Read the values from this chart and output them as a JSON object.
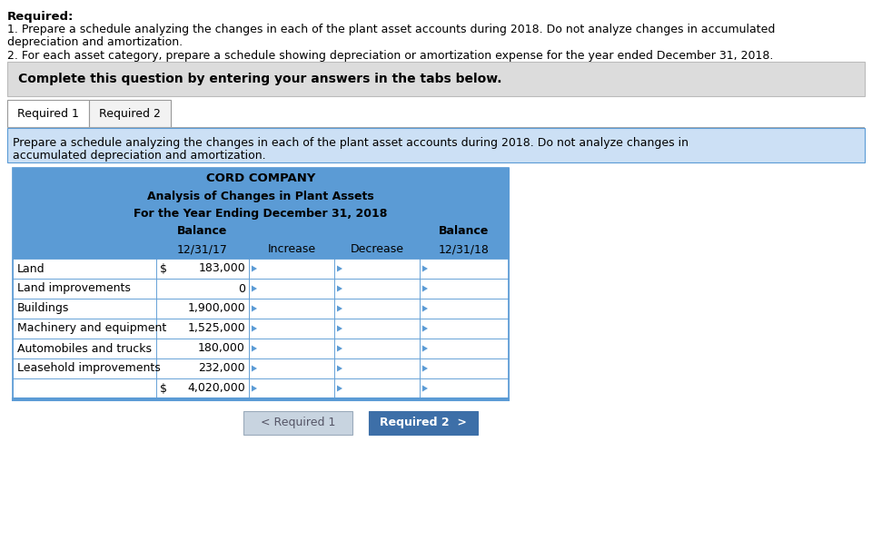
{
  "required_bold": "Required:",
  "req_line1": "1. Prepare a schedule analyzing the changes in each of the plant asset accounts during 2018. Do not analyze changes in accumulated",
  "req_line2": "depreciation and amortization.",
  "req_line3": "2. For each asset category, prepare a schedule showing depreciation or amortization expense for the year ended December 31, 2018.",
  "complete_text": "Complete this question by entering your answers in the tabs below.",
  "tab1": "Required 1",
  "tab2": "Required 2",
  "instr1": "Prepare a schedule analyzing the changes in each of the plant asset accounts during 2018. Do not analyze changes in",
  "instr2": "accumulated depreciation and amortization.",
  "title1": "CORD COMPANY",
  "title2": "Analysis of Changes in Plant Assets",
  "title3": "For the Year Ending December 31, 2018",
  "hdr_balance": "Balance",
  "hdr_1217": "12/31/17",
  "hdr_increase": "Increase",
  "hdr_decrease": "Decrease",
  "hdr_1218": "12/31/18",
  "rows": [
    {
      "label": "Land",
      "dollar": "$",
      "bal17": "183,000"
    },
    {
      "label": "Land improvements",
      "dollar": "",
      "bal17": "0"
    },
    {
      "label": "Buildings",
      "dollar": "",
      "bal17": "1,900,000"
    },
    {
      "label": "Machinery and equipment",
      "dollar": "",
      "bal17": "1,525,000"
    },
    {
      "label": "Automobiles and trucks",
      "dollar": "",
      "bal17": "180,000"
    },
    {
      "label": "Leasehold improvements",
      "dollar": "",
      "bal17": "232,000"
    },
    {
      "label": "",
      "dollar": "$",
      "bal17": "4,020,000"
    }
  ],
  "btn1": "< Required 1",
  "btn2": "Required 2  >",
  "white": "#ffffff",
  "gray_bg": "#dcdcdc",
  "blue_hdr": "#5b9bd5",
  "blue_dark": "#3d6fa8",
  "blue_light_bg": "#cce0f5",
  "border": "#5b9bd5",
  "black": "#000000",
  "tab_border": "#999999"
}
